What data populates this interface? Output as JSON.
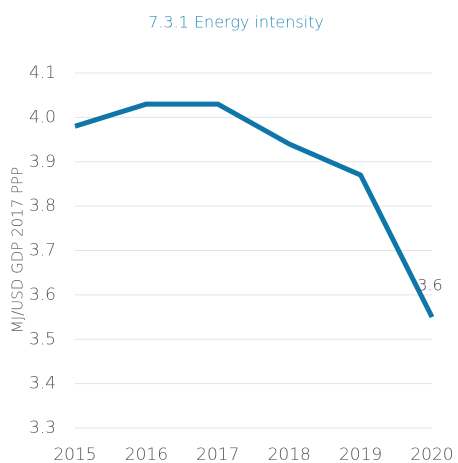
{
  "chart_data": {
    "type": "line",
    "title": "7.3.1 Energy intensity",
    "y_label": "MJ/USD GDP 2017 PPP",
    "categories": [
      "2015",
      "2016",
      "2017",
      "2018",
      "2019",
      "2020"
    ],
    "series": [
      {
        "name": "Energy intensity",
        "color": "#0f76a8",
        "values": [
          3.98,
          4.03,
          4.03,
          3.94,
          3.87,
          3.55
        ],
        "value_labels": [
          null,
          null,
          null,
          null,
          null,
          "3.6"
        ]
      }
    ],
    "ylim": [
      3.3,
      4.1
    ],
    "yticks": [
      3.3,
      3.4,
      3.5,
      3.6,
      3.7,
      3.8,
      3.9,
      {
        "value": 4,
        "label": "4.0"
      },
      4.1
    ],
    "grid": true
  }
}
